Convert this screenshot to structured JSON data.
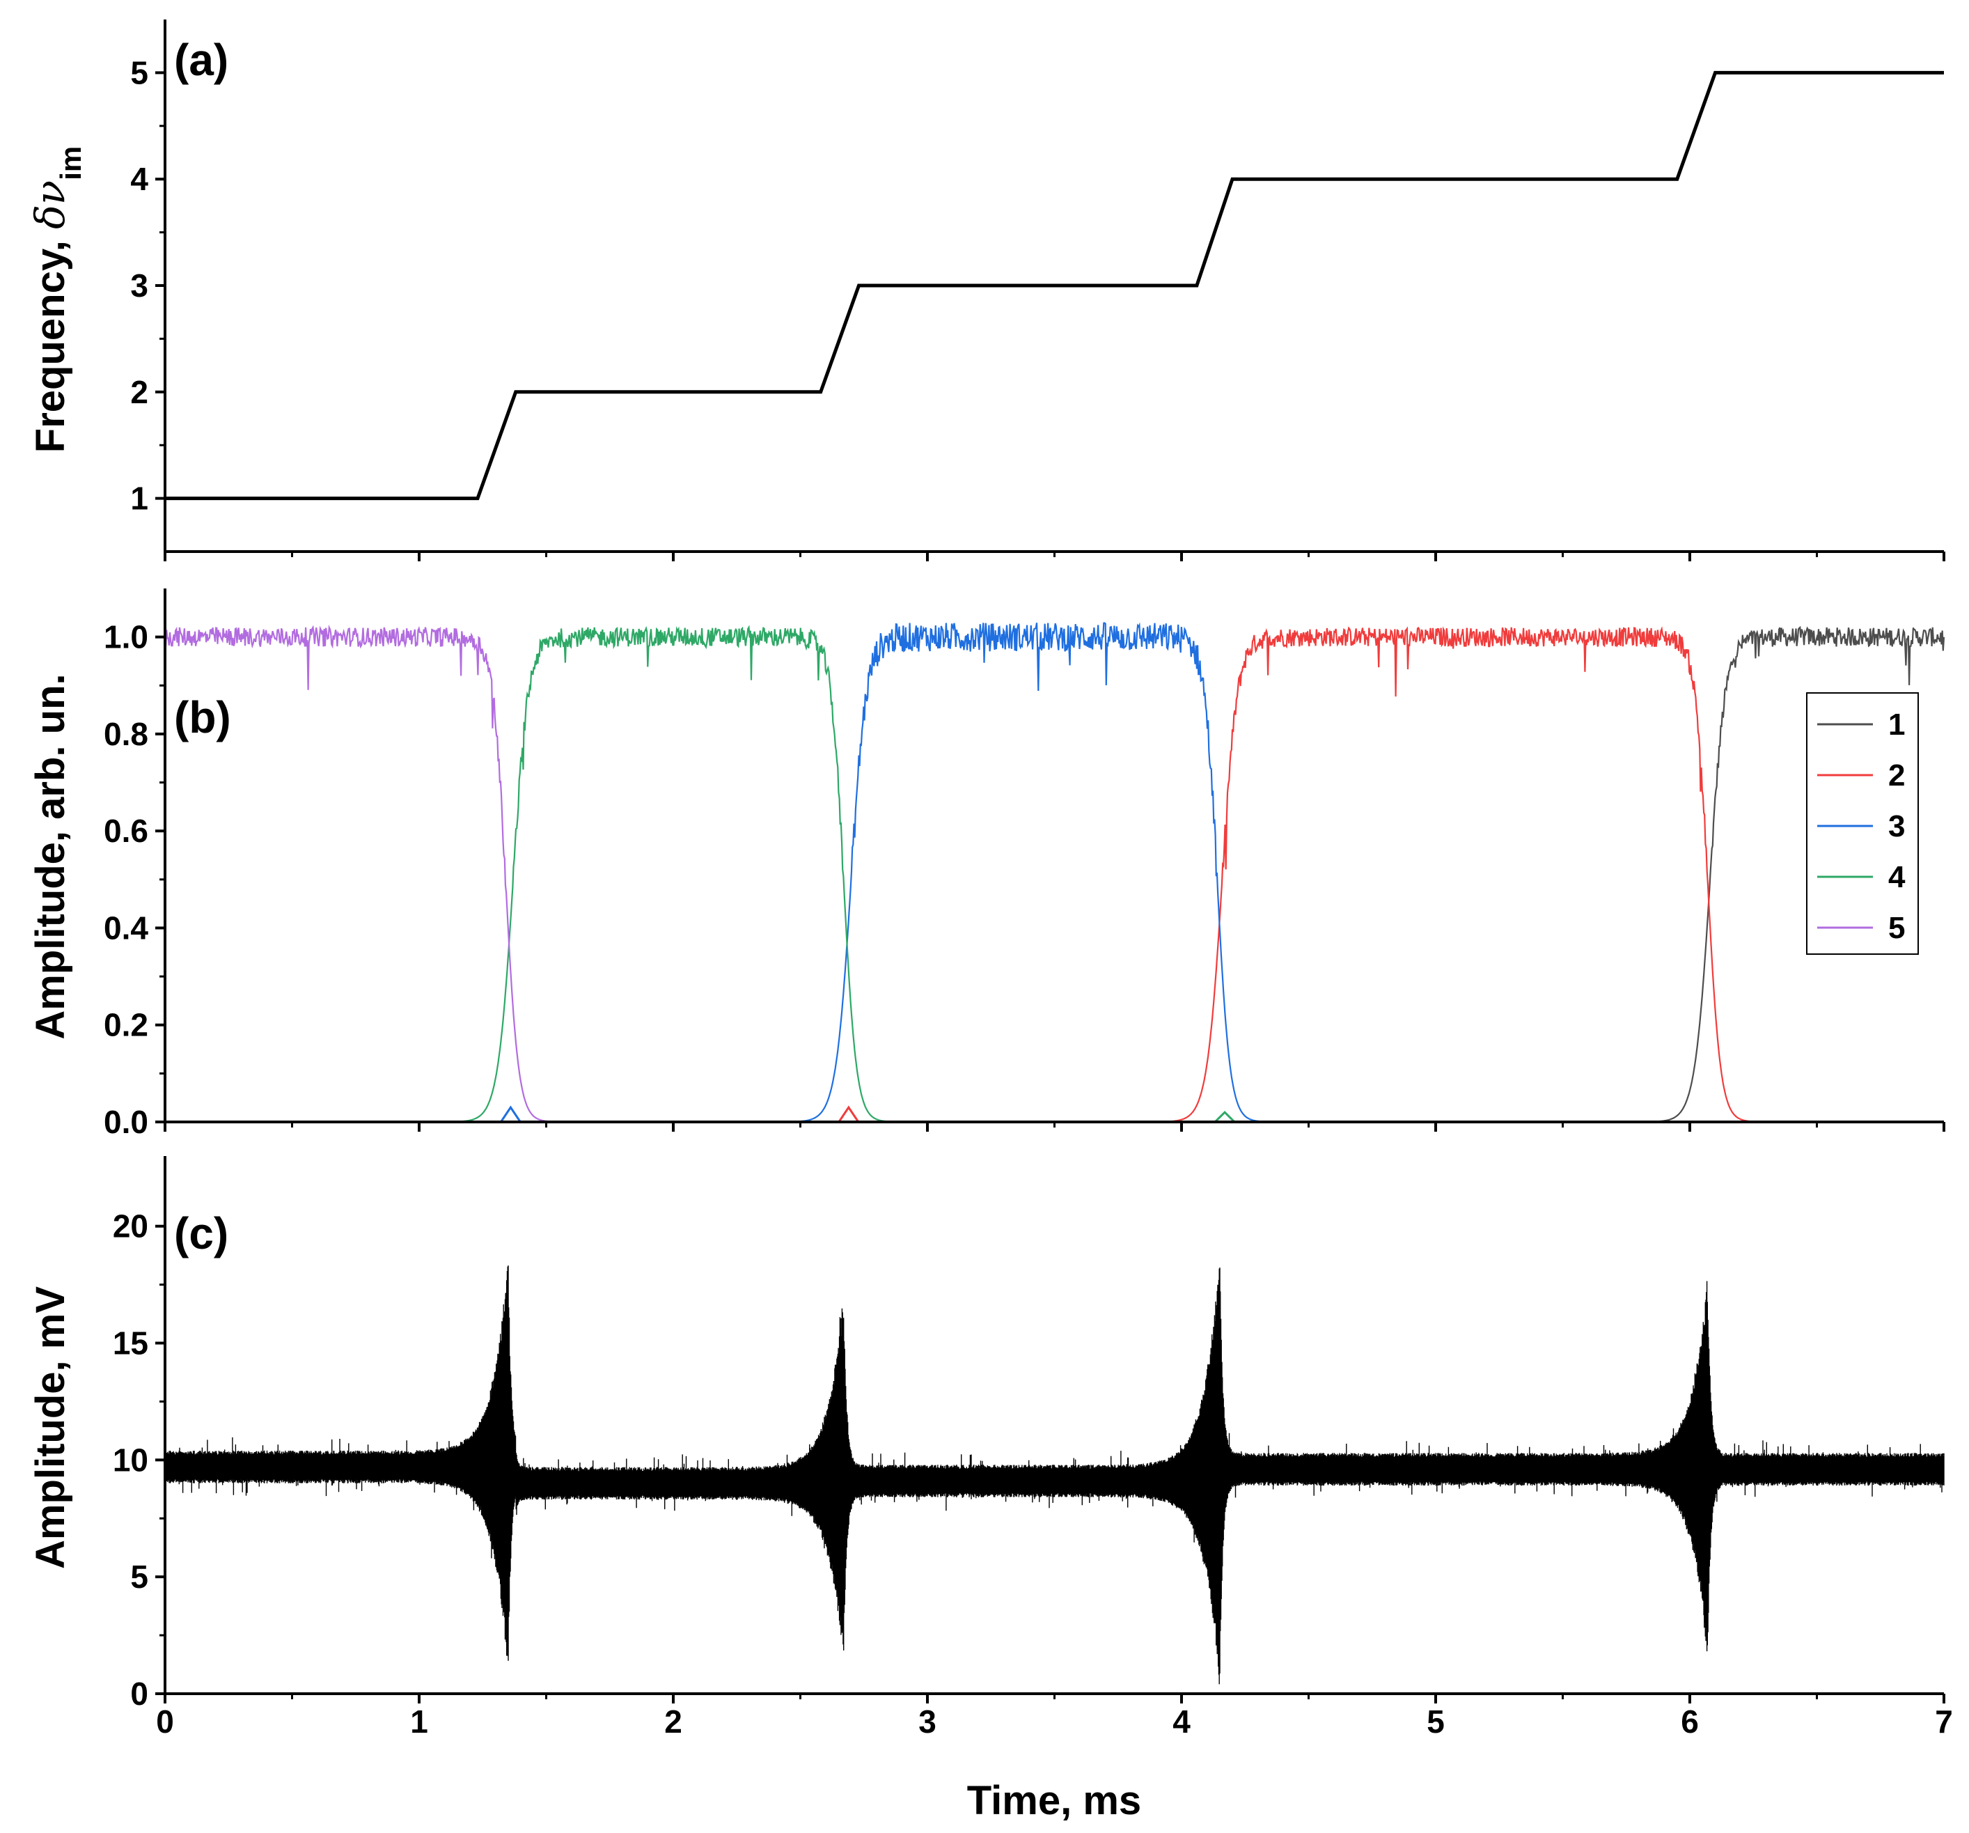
{
  "xaxis": {
    "label": "Time, ms",
    "range": [
      0,
      7
    ],
    "ticks": [
      0,
      1,
      2,
      3,
      4,
      5,
      6,
      7
    ],
    "tick_labels": [
      "0",
      "1",
      "2",
      "3",
      "4",
      "5",
      "6",
      "7"
    ]
  },
  "chart_data": [
    {
      "panel": "a",
      "panel_label": "(a)",
      "type": "line",
      "ylabel_main": "Frequency, ",
      "ylabel_symbol": "δν",
      "ylabel_sub": "im",
      "ylim": [
        0.5,
        5.5
      ],
      "yticks": [
        1,
        2,
        3,
        4,
        5
      ],
      "ytick_labels": [
        "1",
        "2",
        "3",
        "4",
        "5"
      ],
      "grid": false,
      "color": "#000000",
      "x": [
        0,
        1.23,
        1.38,
        2.58,
        2.73,
        4.06,
        4.2,
        5.95,
        6.1,
        7.0
      ],
      "y": [
        1,
        1,
        2,
        2,
        3,
        3,
        4,
        4,
        5,
        5
      ]
    },
    {
      "panel": "b",
      "panel_label": "(b)",
      "type": "line",
      "ylabel": "Amplitude, arb. un.",
      "ylim": [
        0,
        1.1
      ],
      "yticks": [
        0.0,
        0.2,
        0.4,
        0.6,
        0.8,
        1.0
      ],
      "ytick_labels": [
        "0.0",
        "0.2",
        "0.4",
        "0.6",
        "0.8",
        "1.0"
      ],
      "grid": false,
      "legend_placement": "right",
      "series": [
        {
          "name": "1",
          "color": "#4d4d4d",
          "high_from": 6.08,
          "high_to": 7.0,
          "noise": 0.02,
          "rise": 0.03,
          "fall": 0.03
        },
        {
          "name": "2",
          "color": "#f03c3c",
          "high_from": 4.16,
          "high_to": 6.07,
          "noise": 0.02,
          "rise": 0.03,
          "fall": 0.025,
          "bump_at": null
        },
        {
          "name": "3",
          "color": "#1f6fe0",
          "high_from": 2.7,
          "high_to": 4.14,
          "noise": 0.03,
          "rise": 0.03,
          "fall": 0.025,
          "bump_at": 1.36
        },
        {
          "name": "4",
          "color": "#2ea866",
          "high_from": 1.37,
          "high_to": 2.67,
          "noise": 0.02,
          "rise": 0.03,
          "fall": 0.025,
          "bump_at": 4.17
        },
        {
          "name": "5",
          "color": "#b26ce0",
          "high_from": 0.0,
          "high_to": 1.34,
          "noise": 0.02,
          "rise": 0.03,
          "fall": 0.025
        }
      ],
      "small_bumps": [
        {
          "series": "3",
          "x": 1.36,
          "y": 0.03
        },
        {
          "series": "2",
          "x": 2.69,
          "y": 0.03
        },
        {
          "series": "4",
          "x": 4.17,
          "y": 0.02
        }
      ]
    },
    {
      "panel": "c",
      "panel_label": "(c)",
      "type": "line",
      "ylabel": "Amplitude, mV",
      "ylim": [
        0,
        23
      ],
      "yticks": [
        0,
        5,
        10,
        15,
        20
      ],
      "ytick_labels": [
        "0",
        "5",
        "10",
        "15",
        "20"
      ],
      "grid": false,
      "color": "#000000",
      "baseline": [
        {
          "from": 0.0,
          "to": 1.38,
          "center": 9.7
        },
        {
          "from": 1.38,
          "to": 2.67,
          "center": 9.0
        },
        {
          "from": 2.67,
          "to": 4.15,
          "center": 9.1
        },
        {
          "from": 4.15,
          "to": 7.0,
          "center": 9.6
        }
      ],
      "band_halfwidth": 0.7,
      "peaks": [
        {
          "x": 1.35,
          "top": 18.9,
          "bottom": 0.8
        },
        {
          "x": 2.67,
          "top": 17.4,
          "bottom": 1.3
        },
        {
          "x": 4.15,
          "top": 19.3,
          "bottom": 0.1
        },
        {
          "x": 6.07,
          "top": 18.0,
          "bottom": 1.3
        }
      ]
    }
  ]
}
